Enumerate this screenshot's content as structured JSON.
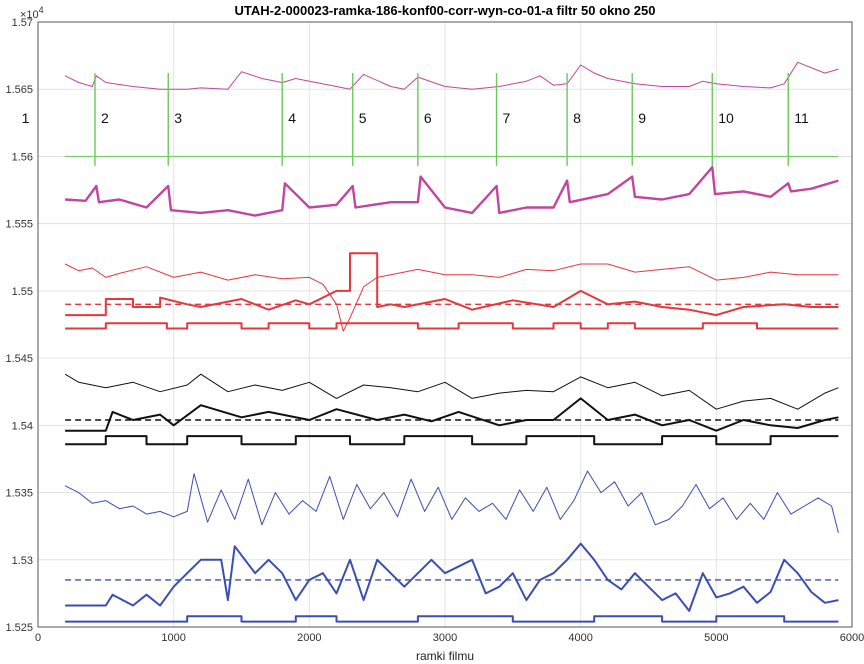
{
  "chart_data": {
    "type": "line",
    "title": "UTAH-2-000023-ramka-186-konf00-corr-wyn-co-01-a filtr  50 okno 250",
    "xlabel": "ramki filmu",
    "ylabel": "",
    "xlim": [
      0,
      6000
    ],
    "ylim": [
      15250,
      15700
    ],
    "xticks": [
      0,
      1000,
      2000,
      3000,
      4000,
      5000,
      6000
    ],
    "yticks": [
      15250,
      15300,
      15350,
      15400,
      15450,
      15500,
      15550,
      15600,
      15650,
      15700
    ],
    "ytick_labels": [
      "1.525",
      "1.53",
      "1.535",
      "1.54",
      "1.545",
      "1.55",
      "1.555",
      "1.56",
      "1.565",
      "1.57"
    ],
    "y_exponent": "×10",
    "y_exponent_power": "4",
    "grid": true,
    "legend": "none",
    "colors": {
      "magenta": "#c2459f",
      "green": "#6bc95a",
      "red": "#e0393e",
      "black": "#111111",
      "blue": "#3a4fb0"
    },
    "segment_markers": [
      {
        "label": "1",
        "x": 100
      },
      {
        "label": "2",
        "x": 420
      },
      {
        "label": "3",
        "x": 960
      },
      {
        "label": "4",
        "x": 1800
      },
      {
        "label": "5",
        "x": 2320
      },
      {
        "label": "6",
        "x": 2800
      },
      {
        "label": "7",
        "x": 3380
      },
      {
        "label": "8",
        "x": 3900
      },
      {
        "label": "9",
        "x": 4380
      },
      {
        "label": "10",
        "x": 4970
      },
      {
        "label": "11",
        "x": 5530
      }
    ],
    "series": [
      {
        "id": "magenta-thin",
        "color": "#c2459f",
        "width": 1.0,
        "x": [
          200,
          300,
          400,
          430,
          500,
          700,
          900,
          1100,
          1200,
          1400,
          1500,
          1650,
          1800,
          1900,
          2000,
          2200,
          2300,
          2400,
          2600,
          2700,
          2800,
          3000,
          3200,
          3400,
          3600,
          3700,
          3800,
          3900,
          4000,
          4100,
          4200,
          4400,
          4600,
          4800,
          4900,
          5000,
          5200,
          5400,
          5500,
          5600,
          5800,
          5900
        ],
        "y": [
          15660,
          15655,
          15652,
          15660,
          15655,
          15652,
          15650,
          15650,
          15651,
          15650,
          15663,
          15658,
          15655,
          15658,
          15656,
          15652,
          15650,
          15661,
          15652,
          15650,
          15659,
          15652,
          15650,
          15652,
          15656,
          15660,
          15653,
          15654,
          15668,
          15662,
          15658,
          15654,
          15652,
          15652,
          15656,
          15654,
          15652,
          15651,
          15654,
          15670,
          15662,
          15665
        ]
      },
      {
        "id": "green",
        "color": "#6bc95a",
        "width": 1.0,
        "x": [
          200,
          5900
        ],
        "y": [
          15600,
          15600
        ]
      },
      {
        "id": "magenta-thick",
        "color": "#c2459f",
        "width": 2.4,
        "x": [
          200,
          350,
          430,
          450,
          600,
          800,
          960,
          980,
          1200,
          1400,
          1600,
          1800,
          1820,
          2000,
          2200,
          2320,
          2340,
          2600,
          2800,
          2820,
          3000,
          3200,
          3380,
          3400,
          3600,
          3800,
          3900,
          3920,
          4200,
          4380,
          4400,
          4600,
          4800,
          4970,
          4990,
          5200,
          5400,
          5530,
          5550,
          5700,
          5900
        ],
        "y": [
          15568,
          15567,
          15578,
          15566,
          15568,
          15562,
          15578,
          15560,
          15558,
          15560,
          15556,
          15560,
          15580,
          15562,
          15564,
          15578,
          15562,
          15566,
          15566,
          15585,
          15562,
          15558,
          15578,
          15558,
          15562,
          15562,
          15582,
          15566,
          15572,
          15585,
          15570,
          15568,
          15572,
          15592,
          15572,
          15574,
          15570,
          15580,
          15574,
          15576,
          15582
        ]
      },
      {
        "id": "red-thin",
        "color": "#e0393e",
        "width": 1.0,
        "x": [
          200,
          300,
          400,
          500,
          600,
          800,
          1000,
          1200,
          1400,
          1600,
          1800,
          2000,
          2100,
          2200,
          2250,
          2300,
          2400,
          2500,
          2600,
          2800,
          3000,
          3200,
          3400,
          3600,
          3800,
          4000,
          4200,
          4400,
          4600,
          4800,
          5000,
          5200,
          5400,
          5600,
          5800,
          5900
        ],
        "y": [
          15520,
          15515,
          15517,
          15510,
          15513,
          15518,
          15510,
          15514,
          15508,
          15512,
          15509,
          15510,
          15505,
          15490,
          15470,
          15480,
          15503,
          15510,
          15512,
          15516,
          15512,
          15512,
          15510,
          15516,
          15515,
          15520,
          15520,
          15514,
          15516,
          15518,
          15508,
          15510,
          15514,
          15512,
          15512,
          15512
        ]
      },
      {
        "id": "red-dashed",
        "color": "#e0393e",
        "width": 1.4,
        "dash": true,
        "x": [
          200,
          5900
        ],
        "y": [
          15490,
          15490
        ]
      },
      {
        "id": "red-thick",
        "color": "#e0393e",
        "width": 2.0,
        "x": [
          200,
          500,
          500,
          700,
          700,
          900,
          900,
          1100,
          1200,
          1500,
          1700,
          1900,
          2000,
          2200,
          2300,
          2300,
          2500,
          2500,
          2600,
          2700,
          3000,
          3200,
          3500,
          3800,
          4000,
          4200,
          4400,
          4600,
          4800,
          5000,
          5200,
          5500,
          5700,
          5900
        ],
        "y": [
          15482,
          15482,
          15494,
          15494,
          15488,
          15488,
          15495,
          15490,
          15488,
          15494,
          15486,
          15493,
          15490,
          15500,
          15500,
          15528,
          15528,
          15488,
          15490,
          15488,
          15494,
          15486,
          15493,
          15488,
          15500,
          15490,
          15492,
          15488,
          15486,
          15482,
          15488,
          15490,
          15488,
          15488
        ]
      },
      {
        "id": "red-step",
        "color": "#e0393e",
        "width": 2.0,
        "x": [
          200,
          500,
          500,
          950,
          950,
          1100,
          1100,
          1500,
          1500,
          1700,
          1700,
          2000,
          2000,
          2200,
          2200,
          2800,
          2800,
          3100,
          3100,
          3500,
          3500,
          3800,
          3800,
          4000,
          4000,
          4200,
          4200,
          4400,
          4400,
          4900,
          4900,
          5300,
          5300,
          5900
        ],
        "y": [
          15472,
          15472,
          15476,
          15476,
          15472,
          15472,
          15476,
          15476,
          15472,
          15472,
          15476,
          15476,
          15472,
          15472,
          15476,
          15476,
          15472,
          15472,
          15476,
          15476,
          15472,
          15472,
          15476,
          15476,
          15472,
          15472,
          15476,
          15476,
          15472,
          15472,
          15476,
          15476,
          15472,
          15472
        ]
      },
      {
        "id": "black-thin",
        "color": "#111111",
        "width": 1.0,
        "x": [
          200,
          300,
          500,
          700,
          900,
          1100,
          1200,
          1400,
          1600,
          1800,
          2000,
          2200,
          2400,
          2600,
          2800,
          3000,
          3200,
          3400,
          3600,
          3800,
          4000,
          4200,
          4400,
          4600,
          4800,
          5000,
          5200,
          5400,
          5600,
          5800,
          5900
        ],
        "y": [
          15438,
          15432,
          15428,
          15432,
          15425,
          15430,
          15438,
          15425,
          15430,
          15426,
          15432,
          15420,
          15430,
          15428,
          15425,
          15432,
          15420,
          15424,
          15426,
          15425,
          15436,
          15428,
          15432,
          15422,
          15426,
          15412,
          15418,
          15420,
          15412,
          15424,
          15428
        ]
      },
      {
        "id": "black-dashed",
        "color": "#111111",
        "width": 1.4,
        "dash": true,
        "x": [
          200,
          5900
        ],
        "y": [
          15404,
          15404
        ]
      },
      {
        "id": "black-thick",
        "color": "#111111",
        "width": 2.0,
        "x": [
          200,
          500,
          550,
          700,
          900,
          1000,
          1200,
          1500,
          1700,
          2000,
          2200,
          2500,
          2700,
          2900,
          3100,
          3400,
          3600,
          3800,
          4000,
          4200,
          4400,
          4600,
          4800,
          5000,
          5200,
          5400,
          5600,
          5800,
          5900
        ],
        "y": [
          15396,
          15396,
          15410,
          15404,
          15408,
          15400,
          15415,
          15406,
          15410,
          15404,
          15412,
          15404,
          15408,
          15403,
          15410,
          15400,
          15404,
          15404,
          15420,
          15404,
          15408,
          15400,
          15404,
          15396,
          15404,
          15400,
          15398,
          15404,
          15406
        ]
      },
      {
        "id": "black-step",
        "color": "#111111",
        "width": 2.0,
        "x": [
          200,
          500,
          500,
          800,
          800,
          1100,
          1100,
          1500,
          1500,
          1900,
          1900,
          2300,
          2300,
          2700,
          2700,
          3200,
          3200,
          3600,
          3600,
          4100,
          4100,
          4600,
          4600,
          5000,
          5000,
          5400,
          5400,
          5900
        ],
        "y": [
          15386,
          15386,
          15392,
          15392,
          15386,
          15386,
          15392,
          15392,
          15386,
          15386,
          15392,
          15392,
          15386,
          15386,
          15392,
          15392,
          15386,
          15386,
          15392,
          15392,
          15386,
          15386,
          15392,
          15392,
          15386,
          15386,
          15392,
          15392
        ]
      },
      {
        "id": "blue-thin",
        "color": "#3a4fb0",
        "width": 1.0,
        "x": [
          200,
          300,
          400,
          500,
          600,
          700,
          800,
          900,
          1000,
          1100,
          1150,
          1250,
          1350,
          1450,
          1550,
          1650,
          1750,
          1850,
          1950,
          2050,
          2150,
          2250,
          2350,
          2450,
          2550,
          2650,
          2750,
          2850,
          2950,
          3050,
          3150,
          3250,
          3350,
          3450,
          3550,
          3650,
          3750,
          3850,
          3950,
          4050,
          4150,
          4250,
          4350,
          4450,
          4550,
          4650,
          4750,
          4850,
          4950,
          5050,
          5150,
          5250,
          5350,
          5450,
          5550,
          5650,
          5750,
          5850,
          5900
        ],
        "y": [
          15355,
          15350,
          15342,
          15344,
          15338,
          15340,
          15334,
          15336,
          15332,
          15336,
          15364,
          15328,
          15352,
          15330,
          15360,
          15326,
          15350,
          15334,
          15344,
          15336,
          15362,
          15330,
          15356,
          15338,
          15350,
          15332,
          15360,
          15336,
          15354,
          15330,
          15346,
          15336,
          15342,
          15330,
          15352,
          15336,
          15354,
          15330,
          15344,
          15366,
          15350,
          15358,
          15340,
          15350,
          15326,
          15330,
          15340,
          15356,
          15338,
          15346,
          15330,
          15342,
          15330,
          15350,
          15334,
          15340,
          15346,
          15340,
          15320
        ]
      },
      {
        "id": "blue-dashed",
        "color": "#3a4fb0",
        "width": 1.4,
        "dash": true,
        "x": [
          200,
          5900
        ],
        "y": [
          15285,
          15285
        ]
      },
      {
        "id": "blue-thick",
        "color": "#3a4fb0",
        "width": 2.0,
        "x": [
          200,
          500,
          550,
          700,
          800,
          900,
          1000,
          1100,
          1200,
          1350,
          1400,
          1450,
          1600,
          1700,
          1800,
          1900,
          2000,
          2100,
          2200,
          2300,
          2400,
          2500,
          2600,
          2700,
          2800,
          2900,
          3000,
          3200,
          3300,
          3400,
          3500,
          3600,
          3700,
          3800,
          3900,
          4000,
          4100,
          4200,
          4300,
          4400,
          4500,
          4600,
          4700,
          4800,
          4900,
          5000,
          5100,
          5200,
          5300,
          5400,
          5500,
          5600,
          5700,
          5800,
          5900
        ],
        "y": [
          15266,
          15266,
          15274,
          15266,
          15274,
          15266,
          15280,
          15290,
          15300,
          15300,
          15270,
          15310,
          15290,
          15300,
          15290,
          15270,
          15285,
          15290,
          15275,
          15300,
          15270,
          15300,
          15290,
          15280,
          15290,
          15300,
          15290,
          15300,
          15275,
          15280,
          15290,
          15270,
          15285,
          15290,
          15300,
          15312,
          15300,
          15285,
          15278,
          15290,
          15280,
          15270,
          15275,
          15262,
          15290,
          15272,
          15275,
          15280,
          15268,
          15276,
          15300,
          15290,
          15276,
          15268,
          15270
        ]
      },
      {
        "id": "blue-step",
        "color": "#3a4fb0",
        "width": 2.0,
        "x": [
          200,
          1100,
          1100,
          1500,
          1500,
          1900,
          1900,
          2200,
          2200,
          2800,
          2800,
          3500,
          3500,
          4100,
          4100,
          4600,
          4600,
          5000,
          5000,
          5500,
          5500,
          5900
        ],
        "y": [
          15254,
          15254,
          15258,
          15258,
          15254,
          15254,
          15258,
          15258,
          15254,
          15254,
          15258,
          15258,
          15254,
          15254,
          15258,
          15258,
          15254,
          15254,
          15258,
          15258,
          15254,
          15254
        ]
      }
    ]
  }
}
